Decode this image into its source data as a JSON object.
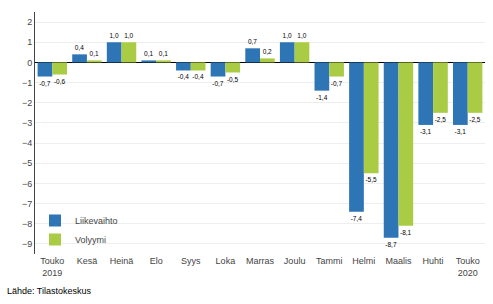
{
  "chart_data": {
    "type": "bar",
    "categories": [
      "Touko\n2019",
      "Kesä",
      "Heinä",
      "Elo",
      "Syys",
      "Loka",
      "Marras",
      "Joulu",
      "Tammi",
      "Helmi",
      "Maalis",
      "Huhti",
      "Touko\n2020"
    ],
    "series": [
      {
        "name": "Liikevaihto",
        "color": "#2E75B6",
        "values": [
          -0.7,
          0.4,
          1.0,
          0.1,
          -0.4,
          -0.7,
          0.7,
          1.0,
          -1.4,
          -7.4,
          -8.7,
          -3.1,
          -3.1
        ],
        "value_labels": [
          "-0,7",
          "0,4",
          "1,0",
          "0,1",
          "-0,4",
          "-0,7",
          "0,7",
          "1,0",
          "-1,4",
          "-7,4",
          "-8,7",
          "-3,1",
          "-3,1"
        ]
      },
      {
        "name": "Volyymi",
        "color": "#AACC44",
        "values": [
          -0.6,
          0.1,
          1.0,
          0.1,
          -0.4,
          -0.5,
          0.2,
          1.0,
          -0.7,
          -5.5,
          -8.1,
          -2.5,
          -2.5
        ],
        "value_labels": [
          "-0,6",
          "0,1",
          "1,0",
          "0,1",
          "-0,4",
          "-0,5",
          "0,2",
          "1,0",
          "-0,7",
          "-5,5",
          "-8,1",
          "-2,5",
          "-2,5"
        ]
      }
    ],
    "ylim": [
      -9.5,
      2.5
    ],
    "yticks": [
      -9,
      -8,
      -7,
      -6,
      -5,
      -4,
      -3,
      -2,
      -1,
      0,
      1,
      2
    ],
    "grid": true,
    "legend": "lower left",
    "data_labels": true,
    "annotations": [
      "Lähde: Tilastokeskus"
    ]
  }
}
